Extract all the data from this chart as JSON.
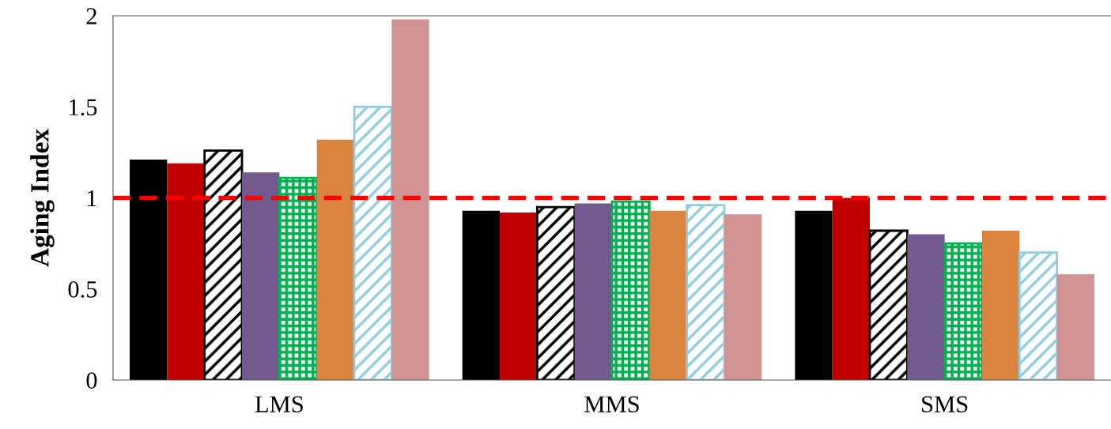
{
  "chart_data": {
    "type": "bar",
    "ylabel": "Aging Index",
    "categories": [
      "LMS",
      "MMS",
      "SMS"
    ],
    "series": [
      {
        "color": "#000000",
        "values": [
          1.21,
          0.93,
          0.93
        ]
      },
      {
        "color": "#c00000",
        "values": [
          1.19,
          0.92,
          1.0
        ]
      },
      {
        "color": "#000000",
        "values": [
          1.26,
          0.95,
          0.82
        ]
      },
      {
        "color": "#725a8e",
        "values": [
          1.14,
          0.97,
          0.8
        ]
      },
      {
        "color": "#00b050",
        "values": [
          1.11,
          0.98,
          0.75
        ]
      },
      {
        "color": "#db8440",
        "values": [
          1.32,
          0.93,
          0.82
        ]
      },
      {
        "color": "#93cddd",
        "values": [
          1.5,
          0.96,
          0.7
        ]
      },
      {
        "color": "#d19292",
        "values": [
          1.98,
          0.91,
          0.58
        ]
      }
    ],
    "ylim": [
      0,
      2
    ],
    "yticks": [
      0,
      0.5,
      1,
      1.5,
      2
    ],
    "grid": false,
    "legend": false,
    "ref_lines": [
      {
        "axis": "y",
        "value": 1,
        "color": "#ff0000",
        "line_style": "dashed"
      }
    ]
  }
}
